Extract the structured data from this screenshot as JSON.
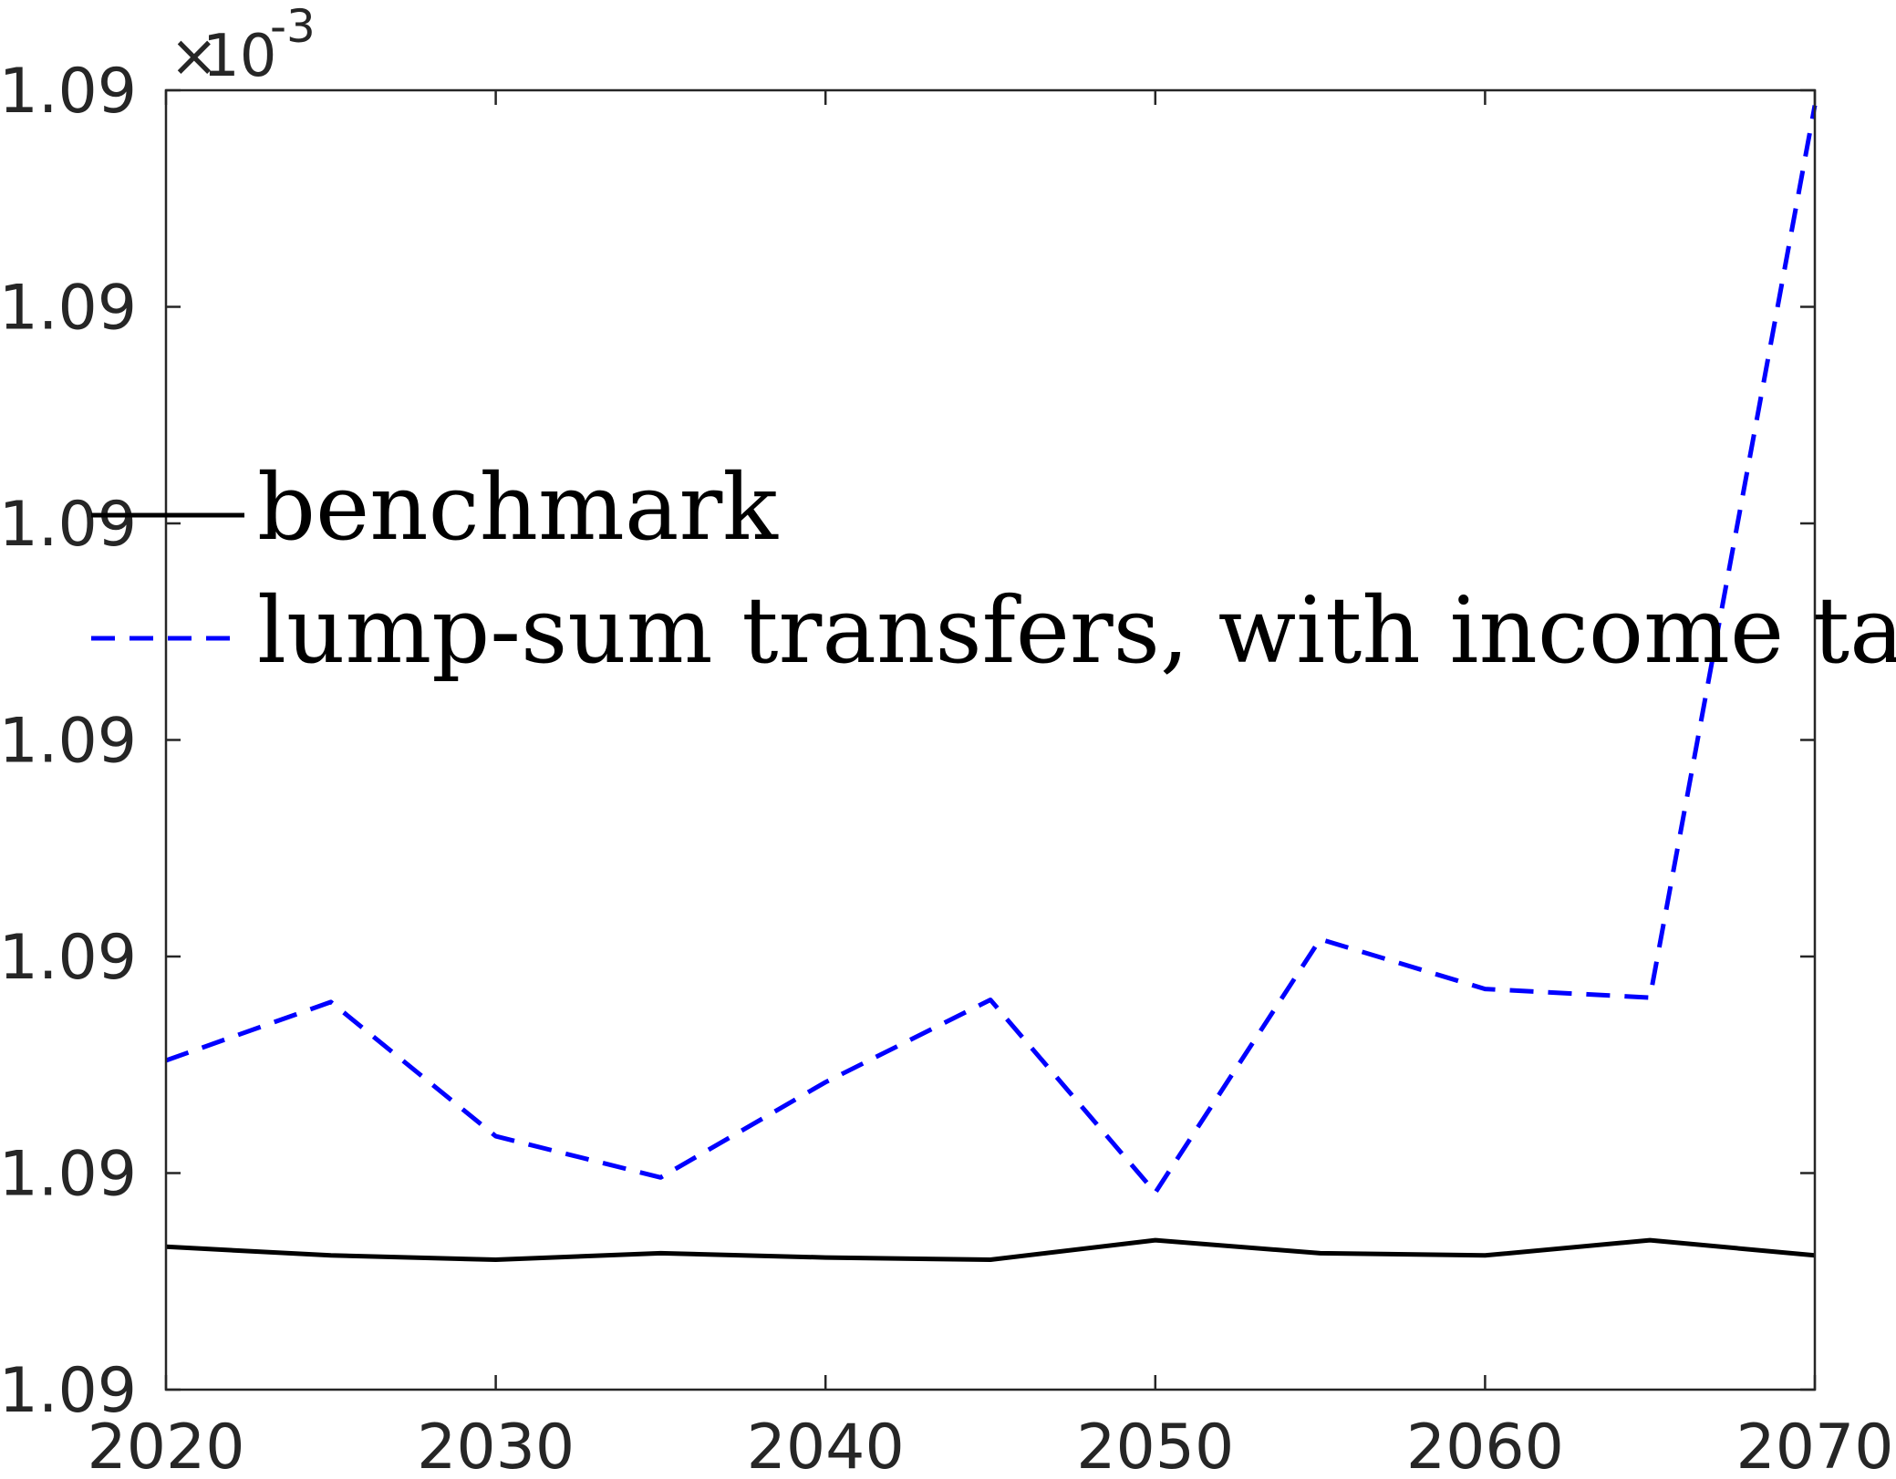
{
  "chart_data": {
    "type": "line",
    "title": "",
    "xlabel": "",
    "ylabel": "",
    "xlim": [
      2020,
      2070
    ],
    "x_ticks": [
      "2020",
      "2030",
      "2040",
      "2050",
      "2060",
      "2070"
    ],
    "ylim": [
      0,
      6
    ],
    "y_ticks": [
      "1.09",
      "1.09",
      "1.09",
      "1.09",
      "1.09",
      "1.09",
      "1.09"
    ],
    "y_multiplier": {
      "base": "10",
      "exponent": "-3"
    },
    "grid": false,
    "legend_position": "middle-left",
    "x": [
      2020,
      2025,
      2030,
      2035,
      2040,
      2045,
      2050,
      2055,
      2060,
      2065,
      2070
    ],
    "series": [
      {
        "name": "benchmark",
        "style": "solid",
        "color": "#000000",
        "values": [
          0.66,
          0.62,
          0.6,
          0.63,
          0.61,
          0.6,
          0.69,
          0.63,
          0.62,
          0.69,
          0.62
        ]
      },
      {
        "name": "lump-sum transfers, with income tax",
        "style": "dashed",
        "color": "#0000ff",
        "values": [
          1.52,
          1.79,
          1.17,
          0.98,
          1.42,
          1.8,
          0.91,
          2.08,
          1.85,
          1.81,
          5.93
        ]
      }
    ]
  }
}
